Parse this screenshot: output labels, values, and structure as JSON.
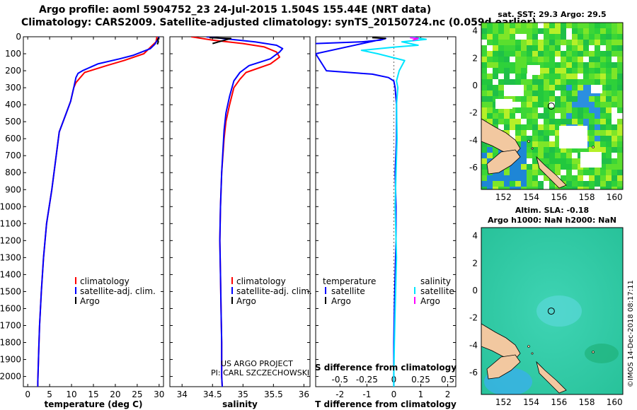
{
  "header": {
    "line1": "Argo profile: aoml 5904752_23 24-Jul-2015 1.504S 155.44E (NRT data)",
    "line2": "Climatology: CARS2009. Satellite-adjusted climatology: synTS_20150724.nc (0.059d earlier)"
  },
  "colors": {
    "clim": "#ff0000",
    "sat": "#0000ff",
    "argo": "#000000",
    "sal_sat": "#00e5ff",
    "sal_argo": "#ff00ff"
  },
  "chart_data": [
    {
      "type": "line",
      "name": "temperature-panel",
      "xlabel": "temperature (deg C)",
      "xlim": [
        -1,
        31
      ],
      "ylim": [
        2060,
        0
      ],
      "xticks": [
        0,
        5,
        10,
        15,
        20,
        25,
        30
      ],
      "yticks": [
        0,
        100,
        200,
        300,
        400,
        500,
        600,
        700,
        800,
        900,
        1000,
        1100,
        1200,
        1300,
        1400,
        1500,
        1600,
        1700,
        1800,
        1900,
        2000
      ],
      "legend": [
        "climatology",
        "satellite-adj. clim.",
        "Argo"
      ],
      "series": [
        {
          "name": "climatology",
          "color": "#ff0000",
          "x": [
            29.5,
            29.3,
            28.5,
            26.5,
            22,
            18,
            13,
            12,
            11,
            10.5,
            9.8,
            8.8,
            7.2,
            6.5,
            5.5,
            4.3,
            3.6,
            3.1,
            2.7,
            2.5,
            2.4,
            2.3,
            2.3
          ],
          "y": [
            0,
            30,
            50,
            100,
            140,
            170,
            210,
            240,
            270,
            300,
            380,
            450,
            560,
            700,
            900,
            1100,
            1300,
            1500,
            1700,
            1850,
            1950,
            2030,
            2060
          ]
        },
        {
          "name": "satellite-adj. clim.",
          "color": "#0000ff",
          "x": [
            30,
            29.6,
            29,
            28,
            24,
            21,
            16,
            12.5,
            11.5,
            11,
            10.5,
            9.8,
            8.8,
            7.2,
            6.5,
            5.5,
            4.3,
            3.6,
            3.1,
            2.7,
            2.5,
            2.4,
            2.3,
            2.3
          ],
          "y": [
            0,
            20,
            45,
            70,
            110,
            130,
            160,
            200,
            215,
            240,
            300,
            380,
            450,
            560,
            700,
            900,
            1100,
            1300,
            1500,
            1700,
            1850,
            1950,
            2030,
            2060
          ]
        },
        {
          "name": "Argo",
          "color": "#000000",
          "x": [
            29.9,
            29.7,
            29.8,
            29.6
          ],
          "y": [
            5,
            15,
            30,
            45
          ]
        }
      ]
    },
    {
      "type": "line",
      "name": "salinity-panel",
      "xlabel": "salinity",
      "xlim": [
        33.8,
        36.1
      ],
      "ylim": [
        2060,
        0
      ],
      "xticks": [
        34,
        34.5,
        35,
        35.5,
        36
      ],
      "legend": [
        "climatology",
        "satellite-adj. clim.",
        "Argo"
      ],
      "series": [
        {
          "name": "climatology",
          "color": "#ff0000",
          "x": [
            34.15,
            34.5,
            35.0,
            35.35,
            35.55,
            35.6,
            35.45,
            35.05,
            34.95,
            34.85,
            34.78,
            34.72,
            34.69,
            34.65,
            34.63,
            34.62,
            34.63,
            34.64,
            34.65,
            34.65,
            34.66
          ],
          "y": [
            0,
            20,
            40,
            60,
            90,
            120,
            160,
            210,
            250,
            300,
            400,
            500,
            600,
            800,
            1000,
            1200,
            1400,
            1600,
            1800,
            2000,
            2060
          ]
        },
        {
          "name": "satellite-adj. clim.",
          "color": "#0000ff",
          "x": [
            34.4,
            34.8,
            35.2,
            35.55,
            35.65,
            35.6,
            35.45,
            35.1,
            34.95,
            34.85,
            34.78,
            34.72,
            34.69,
            34.65,
            34.63,
            34.62,
            34.63,
            34.64,
            34.65,
            34.65,
            34.66
          ],
          "y": [
            0,
            15,
            30,
            50,
            70,
            90,
            130,
            170,
            210,
            260,
            350,
            450,
            550,
            800,
            1000,
            1200,
            1400,
            1600,
            1800,
            2000,
            2060
          ]
        },
        {
          "name": "Argo",
          "color": "#000000",
          "x": [
            34.45,
            34.8,
            34.7,
            34.6,
            34.5
          ],
          "y": [
            5,
            10,
            20,
            30,
            40
          ]
        }
      ]
    },
    {
      "type": "line",
      "name": "difference-panel",
      "xlabel": "T difference from climatology",
      "xlabel_top": "S difference from climatology",
      "xlim": [
        -2.9,
        2.3
      ],
      "ylim": [
        2060,
        0
      ],
      "xticks": [
        -2,
        -1,
        0,
        1,
        2
      ],
      "xticks_top": [
        "-0.5",
        "-0.25",
        "0",
        "0.25",
        "0.5"
      ],
      "legend_left_title": "temperature",
      "legend_right_title": "salinity",
      "legend": [
        "satellite",
        "Argo",
        "satellite",
        "Argo"
      ],
      "series": [
        {
          "name": "T satellite",
          "color": "#0000ff",
          "x": [
            -2.9,
            -1.2,
            -0.5,
            -0.3,
            -2.9,
            -2.5,
            -0.8,
            -0.2,
            0,
            0.05,
            0.1,
            0.1,
            0.05,
            0.08,
            0.08,
            0.05,
            0.02,
            0,
            0,
            0
          ],
          "y": [
            40,
            30,
            20,
            10,
            100,
            200,
            220,
            240,
            260,
            300,
            400,
            600,
            800,
            1000,
            1200,
            1400,
            1600,
            1800,
            2000,
            2060
          ]
        },
        {
          "name": "T Argo",
          "color": "#000000",
          "x": [
            -0.8,
            -0.3
          ],
          "y": [
            5,
            10
          ]
        },
        {
          "name": "S satellite",
          "color": "#00e5ff",
          "x": [
            0.6,
            1.2,
            0.3,
            0.9,
            0.1,
            -1.2,
            -0.6,
            0.4,
            0.2,
            0.1,
            0.15,
            0.1,
            0.12,
            0.08,
            0.05,
            0.1,
            0.05,
            0.02,
            0,
            0
          ],
          "y": [
            0,
            15,
            30,
            50,
            60,
            80,
            100,
            140,
            200,
            260,
            300,
            400,
            600,
            800,
            1000,
            1300,
            1600,
            1800,
            2000,
            2060
          ]
        },
        {
          "name": "S Argo",
          "color": "#ff00ff",
          "x": [
            0.6,
            0.9,
            0.7
          ],
          "y": [
            5,
            10,
            20
          ]
        }
      ]
    },
    {
      "type": "heatmap",
      "name": "sst-map",
      "title": "sat. SST: 29.3 Argo: 29.5",
      "xlim": [
        150.4,
        160.6
      ],
      "ylim": [
        -7.6,
        4.6
      ],
      "xticks": [
        152,
        154,
        156,
        158,
        160
      ],
      "yticks": [
        4,
        2,
        0,
        -2,
        -4,
        -6
      ],
      "float_position": [
        155.44,
        -1.504
      ]
    },
    {
      "type": "heatmap",
      "name": "sla-map",
      "title_line1": "Altim. SLA: -0.18",
      "title_line2": "Argo h1000: NaN h2000: NaN",
      "xlim": [
        150.4,
        160.6
      ],
      "ylim": [
        -7.6,
        4.6
      ],
      "xticks": [
        152,
        154,
        156,
        158,
        160
      ],
      "yticks": [
        4,
        2,
        0,
        -2,
        -4,
        -6
      ],
      "float_position": [
        155.44,
        -1.504
      ]
    }
  ],
  "notes": {
    "project": "US ARGO PROJECT",
    "pi": "PI: CARL SZCZECHOWSKI"
  },
  "stamp": "©IMOS 14-Dec-2018 08:17:11"
}
